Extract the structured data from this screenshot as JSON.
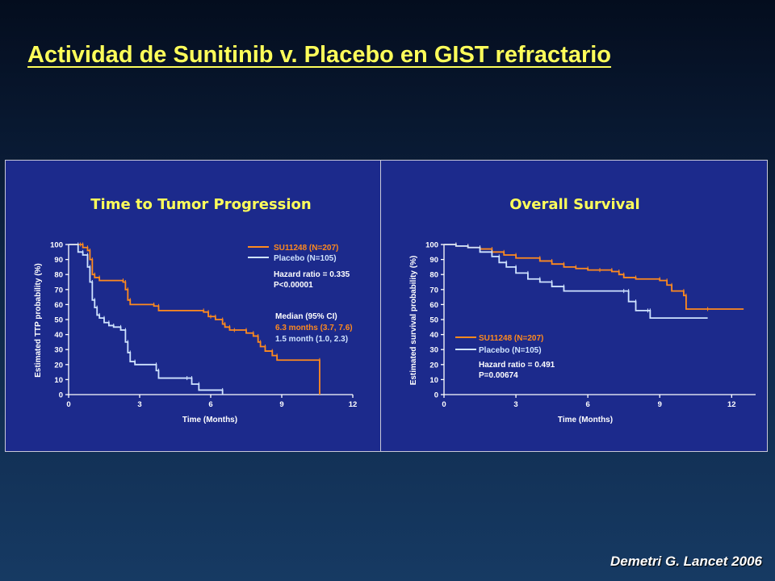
{
  "slide": {
    "title": "Actividad de Sunitinib v. Placebo en GIST refractario ",
    "citation": "Demetri G. Lancet 2006",
    "background_color": "#0d2444",
    "panel_color": "#1c2a8c",
    "title_color": "#ffff5a"
  },
  "chart_data": [
    {
      "type": "line",
      "title": "Time to Tumor Progression",
      "xlabel": "Time (Months)",
      "ylabel": "Estimated TTP probability (%)",
      "xlim": [
        0,
        12
      ],
      "ylim": [
        0,
        100
      ],
      "x_ticks": [
        0,
        3,
        6,
        9,
        12
      ],
      "y_ticks": [
        0,
        10,
        20,
        30,
        40,
        50,
        60,
        70,
        80,
        90,
        100
      ],
      "legend_position": "top-right",
      "series": [
        {
          "name": "SU11248 (N=207)",
          "color": "#ff8a1e",
          "x": [
            0,
            0.5,
            0.6,
            0.8,
            0.9,
            1.0,
            1.1,
            1.3,
            2.3,
            2.4,
            2.5,
            2.6,
            3.6,
            3.8,
            5.7,
            5.9,
            6.0,
            6.2,
            6.5,
            6.6,
            6.8,
            7.0,
            7.5,
            7.8,
            8.0,
            8.1,
            8.3,
            8.6,
            8.8,
            10.6,
            10.6
          ],
          "y": [
            100,
            100,
            98,
            96,
            90,
            80,
            78,
            76,
            75,
            70,
            63,
            60,
            59,
            56,
            55,
            52,
            52,
            50,
            47,
            45,
            43,
            43,
            41,
            39,
            35,
            32,
            29,
            26,
            23,
            23,
            0
          ]
        },
        {
          "name": "Placebo (N=105)",
          "color": "#cfe3ff",
          "x": [
            0,
            0.4,
            0.6,
            0.8,
            0.9,
            1.0,
            1.1,
            1.2,
            1.3,
            1.5,
            1.7,
            1.9,
            2.2,
            2.4,
            2.5,
            2.6,
            2.8,
            3.7,
            3.8,
            5.0,
            5.2,
            5.5,
            6.5,
            6.5
          ],
          "y": [
            100,
            95,
            93,
            85,
            75,
            63,
            58,
            53,
            51,
            48,
            46,
            45,
            43,
            35,
            28,
            22,
            20,
            16,
            11,
            11,
            7,
            3,
            3,
            0
          ]
        }
      ],
      "annotations": [
        "Hazard ratio = 0.335",
        "P<0.00001",
        "Median (95% CI)",
        "6.3 months  (3.7, 7.6)",
        "1.5 month  (1.0, 2.3)"
      ]
    },
    {
      "type": "line",
      "title": "Overall Survival",
      "xlabel": "Time (Months)",
      "ylabel": "Estimated survival probability (%)",
      "xlim": [
        0,
        13
      ],
      "ylim": [
        0,
        100
      ],
      "x_ticks": [
        0,
        3,
        6,
        9,
        12
      ],
      "y_ticks": [
        0,
        10,
        20,
        30,
        40,
        50,
        60,
        70,
        80,
        90,
        100
      ],
      "legend_position": "bottom-left",
      "series": [
        {
          "name": "SU11248 (N=207)",
          "color": "#ff8a1e",
          "x": [
            0,
            0.5,
            1.0,
            1.5,
            2.0,
            2.5,
            3.0,
            4.0,
            4.5,
            5.0,
            5.5,
            6.0,
            6.5,
            7.0,
            7.3,
            7.5,
            8.0,
            9.0,
            9.3,
            9.5,
            10.0,
            10.1,
            11.0,
            12.5
          ],
          "y": [
            100,
            99,
            98,
            97,
            95,
            93,
            91,
            89,
            87,
            85,
            84,
            83,
            83,
            82,
            80,
            78,
            77,
            76,
            73,
            69,
            66,
            57,
            57,
            57
          ]
        },
        {
          "name": "Placebo (N=105)",
          "color": "#cfe3ff",
          "x": [
            0,
            0.5,
            1.0,
            1.5,
            2.0,
            2.3,
            2.6,
            3.0,
            3.5,
            4.0,
            4.5,
            5.0,
            7.5,
            7.7,
            8.0,
            8.5,
            8.6,
            11.0
          ],
          "y": [
            100,
            99,
            98,
            95,
            92,
            88,
            85,
            81,
            77,
            75,
            72,
            69,
            69,
            62,
            56,
            56,
            51,
            51
          ]
        }
      ],
      "annotations": [
        "Hazard ratio = 0.491",
        "P=0.00674"
      ]
    }
  ]
}
